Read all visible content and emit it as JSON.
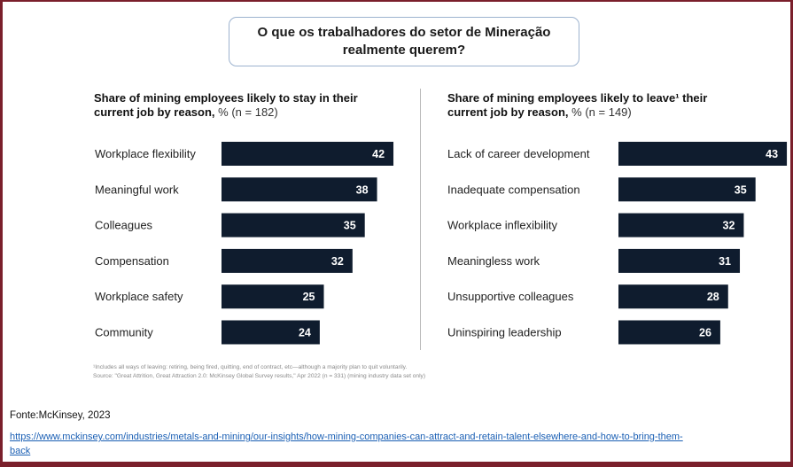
{
  "header": {
    "title": "O que os trabalhadores do setor de Mineração realmente querem?"
  },
  "colors": {
    "bar": "#0f1c2e",
    "bar_label": "#ffffff",
    "frame": "#7a1f2b",
    "link": "#1a5fb4"
  },
  "chart_data": [
    {
      "type": "bar",
      "orientation": "horizontal",
      "title_bold": "Share of mining employees likely to stay in their current job by reason,",
      "title_note": "% (n = 182)",
      "categories": [
        "Workplace flexibility",
        "Meaningful work",
        "Colleagues",
        "Compensation",
        "Workplace safety",
        "Community"
      ],
      "values": [
        42,
        38,
        35,
        32,
        25,
        24
      ],
      "data_labels": true
    },
    {
      "type": "bar",
      "orientation": "horizontal",
      "title_bold": "Share of mining employees likely to leave¹ their current job by reason,",
      "title_note": "% (n = 149)",
      "categories": [
        "Lack of career development",
        "Inadequate compensation",
        "Workplace inflexibility",
        "Meaningless work",
        "Unsupportive colleagues",
        "Uninspiring leadership"
      ],
      "values": [
        43,
        35,
        32,
        31,
        28,
        26
      ],
      "data_labels": true
    }
  ],
  "footnote": {
    "line1": "¹Includes all ways of leaving: retiring, being fired, quitting, end of contract, etc—although a majority plan to quit voluntarily.",
    "line2": "Source: \"Great Attrition, Great Attraction 2.0: McKinsey Global Survey results,\" Apr 2022 (n = 331) (mining industry data set only)"
  },
  "source": {
    "label": "Fonte:McKinsey, 2023",
    "url": "https://www.mckinsey.com/industries/metals-and-mining/our-insights/how-mining-companies-can-attract-and-retain-talent-elsewhere-and-how-to-bring-them-back"
  }
}
